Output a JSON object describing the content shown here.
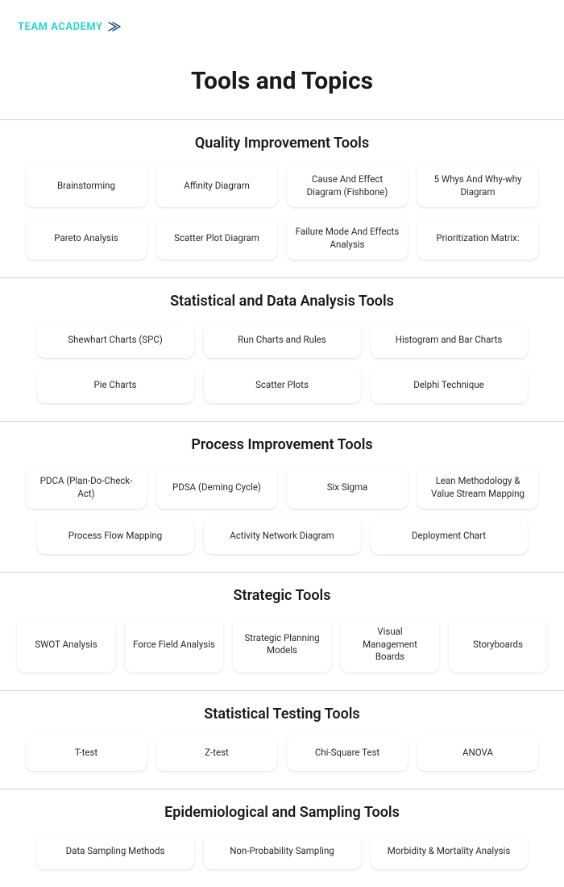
{
  "logo": {
    "text": "TEAM ACADEMY"
  },
  "page_title": "Tools and Topics",
  "sections": [
    {
      "title": "Quality Improvement Tools",
      "col_class": "w4",
      "rows": [
        [
          "Brainstorming",
          "Affinity Diagram",
          "Cause And Effect Diagram (Fishbone)",
          "5 Whys And Why-why Diagram"
        ],
        [
          "Pareto Analysis",
          "Scatter Plot Diagram",
          "Failure Mode And Effects Analysis",
          "Prioritization Matrix:"
        ]
      ]
    },
    {
      "title": "Statistical and Data Analysis Tools",
      "col_class": "w3",
      "rows": [
        [
          "Shewhart Charts (SPC)",
          "Run Charts and Rules",
          "Histogram and Bar Charts"
        ],
        [
          "Pie Charts",
          "Scatter Plots",
          "Delphi Technique"
        ]
      ]
    },
    {
      "title": "Process Improvement Tools",
      "col_class": "w4",
      "rows": [
        [
          "PDCA (Plan-Do-Check-Act)",
          "PDSA (Deming Cycle)",
          "Six Sigma",
          "Lean Methodology & Value Stream Mapping"
        ],
        [
          "Process Flow Mapping",
          "Activity Network Diagram",
          "Deployment Chart"
        ]
      ],
      "second_row_class": "w3"
    },
    {
      "title": "Strategic Tools",
      "col_class": "w5",
      "rows": [
        [
          "SWOT Analysis",
          "Force Field Analysis",
          "Strategic Planning Models",
          "Visual Management Boards",
          "Storyboards"
        ]
      ]
    },
    {
      "title": "Statistical Testing Tools",
      "col_class": "w4",
      "rows": [
        [
          "T-test",
          "Z-test",
          "Chi-Square Test",
          "ANOVA"
        ]
      ]
    },
    {
      "title": "Epidemiological and Sampling Tools",
      "col_class": "w3",
      "rows": [
        [
          "Data Sampling Methods",
          "Non-Probability Sampling",
          "Morbidity & Mortality Analysis"
        ]
      ]
    }
  ]
}
